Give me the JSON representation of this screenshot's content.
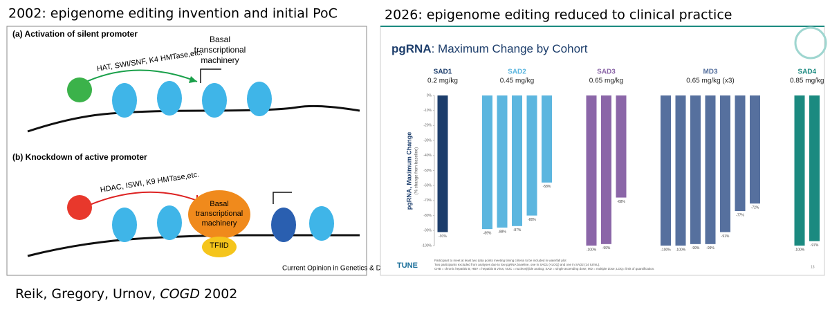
{
  "left": {
    "heading": "2002: epigenome editing invention and initial PoC",
    "panel_a": {
      "label": "(a) Activation of silent promoter",
      "enzymes": "HAT, SWI/SNF, K4 HMTase,etc.",
      "machinery": [
        "Basal",
        "transcriptional",
        "machinery"
      ]
    },
    "panel_b": {
      "label": "(b) Knockdown of active promoter",
      "enzymes": "HDAC, ISWI, K9 HMTase,etc.",
      "machinery": [
        "Basal",
        "transcriptional",
        "machinery"
      ],
      "factor": "TFIID"
    },
    "journal": "Current Opinion in Genetics & Development",
    "citation": [
      "Reik, Gregory, Urnov, ",
      "COGD",
      " 2002"
    ]
  },
  "right_heading": "2026: epigenome editing reduced to clinical practice",
  "chart_data": {
    "type": "bar",
    "title": [
      "pgRNA",
      ": Maximum Change by Cohort"
    ],
    "y_label": [
      "pgRNA, Maximum Change",
      "(% change from baseline)"
    ],
    "ylim": [
      -100,
      0
    ],
    "yticks": [
      {
        "value": 0,
        "label": "0%"
      },
      {
        "value": -10,
        "label": "-10%"
      },
      {
        "value": -20,
        "label": "-20%"
      },
      {
        "value": -30,
        "label": "-30%"
      },
      {
        "value": -40,
        "label": "-40%"
      },
      {
        "value": -50,
        "label": "-50%"
      },
      {
        "value": -60,
        "label": "-60%"
      },
      {
        "value": -70,
        "label": "-70%"
      },
      {
        "value": -80,
        "label": "-80%"
      },
      {
        "value": -90,
        "label": "-90%"
      },
      {
        "value": -100,
        "label": "-100%"
      }
    ],
    "series": [
      {
        "name": "SAD1",
        "dose": "0.2 mg/kg",
        "color": "#1c3d6b",
        "values": [
          -91
        ],
        "value_labels": [
          "-91%"
        ]
      },
      {
        "name": "SAD2",
        "dose": "0.45 mg/kg",
        "color": "#5cb6df",
        "values": [
          -89,
          -88,
          -87,
          -80,
          -58
        ],
        "value_labels": [
          "-89%",
          "-88%",
          "-87%",
          "-80%",
          "-58%"
        ]
      },
      {
        "name": "SAD3",
        "dose": "0.65 mg/kg",
        "color": "#8b66a8",
        "values": [
          -100,
          -99,
          -68
        ],
        "value_labels": [
          "-100%",
          "-99%",
          "-68%"
        ]
      },
      {
        "name": "MD3",
        "dose": "0.65 mg/kg (x3)",
        "color": "#56709e",
        "values": [
          -100,
          -100,
          -99,
          -99,
          -91,
          -77,
          -72
        ],
        "value_labels": [
          "-100%",
          "-100%",
          "-99%",
          "-99%",
          "-91%",
          "-77%",
          "-72%"
        ]
      },
      {
        "name": "SAD4",
        "dose": "0.85 mg/kg",
        "color": "#1b8a80",
        "values": [
          -100,
          -97
        ],
        "value_labels": [
          "-100%",
          "-97%"
        ]
      }
    ],
    "footnotes": [
      "Participant to meet at least two data points meeting timing criteria to be included in waterfall plot",
      "Two participants excluded from analyses due to low pgRNA baseline, one in SAD1 (<LOQ) and one in SAD2 (14 IU/mL).",
      "CHB = chronic hepatitis B; HBV = hepatitis B virus; NUC = nucleos(t)ide analog; SAD = single ascending dose; MD = multiple dose; LOQ= limit of quantification."
    ],
    "logo": "TUNE",
    "page_number": "13"
  }
}
